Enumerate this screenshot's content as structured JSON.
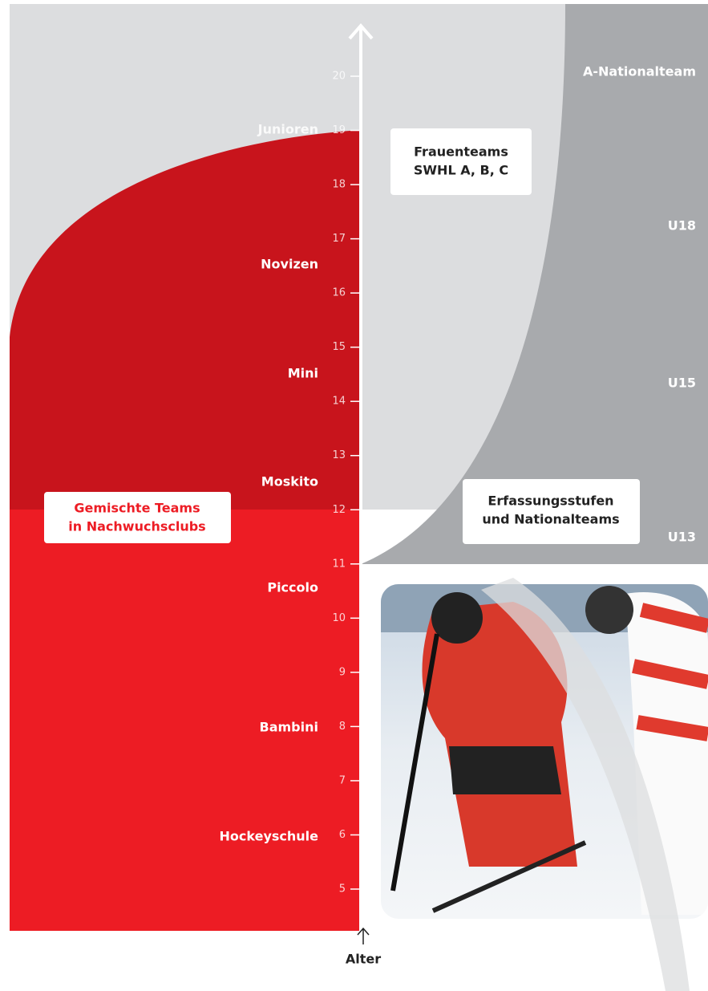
{
  "axis": {
    "label": "Alter",
    "ticks": [
      5,
      6,
      7,
      8,
      9,
      10,
      11,
      12,
      13,
      14,
      15,
      16,
      17,
      18,
      19,
      20
    ]
  },
  "club_levels": [
    "Junioren",
    "Novizen",
    "Mini",
    "Moskito",
    "Piccolo",
    "Bambini",
    "Hockeyschule"
  ],
  "national_levels": [
    "A-Nationalteam",
    "U18",
    "U15",
    "U13"
  ],
  "boxes": {
    "women": {
      "lines": [
        "Frauenteams",
        "SWHL A, B, C"
      ]
    },
    "mixed": {
      "lines": [
        "Gemischte Teams",
        "in Nachwuchsclubs"
      ]
    },
    "national": {
      "lines": [
        "Erfassungsstufen",
        "und Nationalteams"
      ]
    }
  }
}
